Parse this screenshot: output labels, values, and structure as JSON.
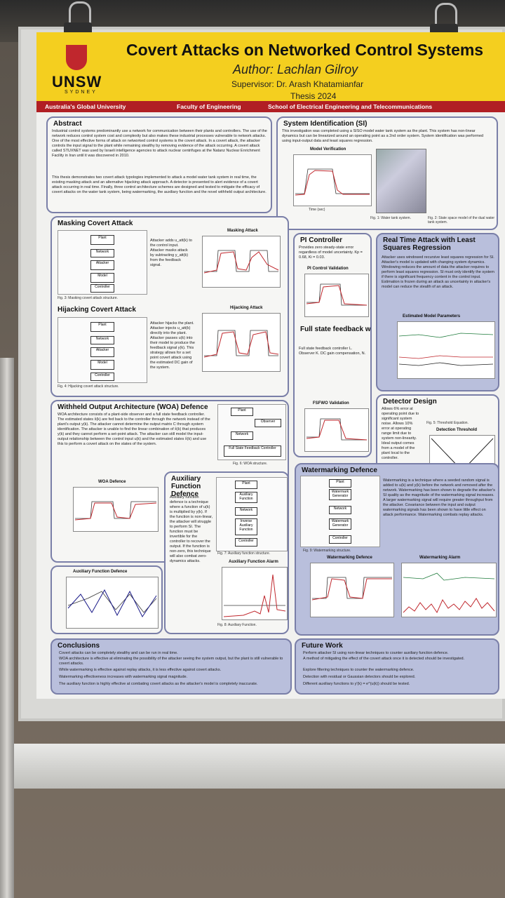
{
  "poster": {
    "title": "Covert Attacks on Networked Control Systems",
    "author": "Author: Lachlan Gilroy",
    "supervisor": "Supervisor: Dr. Arash Khatamianfar",
    "thesis": "Thesis 2024",
    "logo_text": "UNSW",
    "logo_sub": "SYDNEY",
    "band": [
      "Australia's Global University",
      "Faculty of Engineering",
      "School of Electrical Engineering and Telecommunications"
    ]
  },
  "sections": {
    "abstract": {
      "title": "Abstract",
      "text": "Industrial control systems predominantly use a network for communication between their plants and controllers. The use of the network reduces control system cost and complexity but also makes these industrial processes vulnerable to network attacks. One of the most effective forms of attack on networked control systems is the covert attack. In a covert attack, the attacker controls the input signal to the plant while remaining stealthy by removing evidence of the attack occurring. A covert attack called STUXNET was used by Israeli intelligence agencies to attack nuclear centrifuges at the Natanz Nuclear Enrichment Facility in Iran until it was discovered in 2010.",
      "text2": "This thesis demonstrates two covert attack typologies implemented to attack a model water tank system in real time, the existing masking attack and an alternative hijacking attack approach. A detector is presented to alert evidence of a covert attack occurring in real time. Finally, three control architecture schemes are designed and tested to mitigate the efficacy of covert attacks on the water tank system, being watermarking, the auxiliary function and the novel withheld output architecture."
    },
    "si": {
      "title": "System Identification (SI)",
      "text": "This investigation was completed using a SISO model water tank system as the plant. This system has non-linear dynamics but can be linearized around an operating point as a 2nd order system. System identification was performed using input-output data and least squares regression.",
      "plot_title": "Model Verification",
      "xlabel": "Time (sec)",
      "ylabel": "Water Level (V)",
      "fig1": "Fig. 1: Water tank system.",
      "fig2": "Fig. 2: State space model of the dual water tank system."
    },
    "masking": {
      "title": "Masking Covert Attack",
      "text": "Attacker adds u_att(k) to the control input. Attacker masks attack by subtracting y_att(k) from the feedback signal.",
      "plot_title": "Masking Attack",
      "fig": "Fig. 3: Masking covert attack structure."
    },
    "hijacking": {
      "title": "Hijacking Covert Attack",
      "text": "Attacker hijacks the plant. Attacker injects u_att(k) directly into the plant. Attacker passes u(k) into their model to produce the feedback signal y(k). This strategy allows for a set point covert attack using the estimated DC gain of the system.",
      "plot_title": "Hijacking Attack",
      "fig": "Fig. 4: Hijacking covert attack structure."
    },
    "pi": {
      "title": "PI Controller",
      "text": "Provides zero steady-state error regardless of model uncertainty. Kp = 0.68, Ki = 0.03.",
      "plot_title": "PI Control Validation"
    },
    "fsfo": {
      "title": "Full state feedback with observer",
      "text": "Full state feedback controller L. Observer K. DC gain compensation, N.",
      "plot_title": "FSFWO Validation"
    },
    "lsr": {
      "title": "Real Time Attack with Least Squares Regression",
      "text": "Attacker uses windowed recursive least squares regression for SI. Attacker's model is updated with changing system dynamics. Windowing reduces the amount of data the attacker requires to perform least squares regression. SI must only identify the system if there is significant frequency content in the control input. Estimation is frozen during an attack as uncertainty in attacker's model can reduce the stealth of an attack.",
      "plot_title": "Estimated Model Parameters"
    },
    "woa": {
      "title": "Withheld Output Architecture (WOA) Defence",
      "text": "WOA architecture consists of a plant-side observer and a full state feedback controller. The estimated states x̂(k) are fed back to the controller through the network instead of the plant's output y(k). The attacker cannot determine the output matrix C through system identification. The attacker is unable to find the linear combination of x̂(k) that produces y(k) and they cannot perform a set-point attack. The attacker can still model the input-output relationship between the control input u(k) and the estimated states x̂(k) and use this to perform a covert attack on the states of the system.",
      "plot_title": "WOA Defence",
      "fig": "Fig. 6: WOA structure."
    },
    "detector": {
      "title": "Detector Design",
      "text": "Allows 6% error at operating point due to significant system noise. Allows 10% error at operating range limit due to system non-linearity. Ideal output comes from a model of the plant local to the controller.",
      "plot_title": "Detection Threshold",
      "fig": "Fig. 5: Threshold Equation."
    },
    "aux": {
      "title": "Auxiliary Function Defence",
      "text": "Auxiliary function defence is a technique where a function of u(k) is multiplied by y(k). If the function is non-linear, the attacker will struggle to perform SI. The function must be invertible for the controller to recover the output. If the function is non-zero, this technique will also combat zero-dynamics attacks.",
      "plot_title": "Auxiliary Function Defence",
      "alarm_title": "Auxiliary Function Alarm",
      "fig7": "Fig. 7: Auxiliary function structure.",
      "fig8": "Fig. 8: Auxiliary Function."
    },
    "watermark": {
      "title": "Watermarking Defence",
      "text": "Watermarking is a technique where a seeded random signal is added to u(k) and y(k) before the network and removed after the network. Watermarking has been shown to degrade the attacker's SI quality as the magnitude of the watermarking signal increases. A larger watermarking signal will require greater throughput from the attacker. Covariance between the input and output watermarking signals has been shown to have little effect on attack performance. Watermarking combats replay attacks.",
      "plot_title": "Watermarking Defence",
      "alarm_title": "Watermarking Alarm",
      "fig": "Fig. 9: Watermarking structure."
    },
    "conclusions": {
      "title": "Conclusions",
      "items": [
        "Covert attacks can be completely stealthy and can be run in real time.",
        "WOA architecture is effective at eliminating the possibility of the attacker seeing the system output, but the plant is still vulnerable to covert attacks.",
        "While watermarking is effective against replay attacks, it is less effective against covert attacks.",
        "Watermarking effectiveness increases with watermarking signal magnitude.",
        "The auxiliary function is highly effective at combating covert attacks as the attacker's model is completely inaccurate."
      ]
    },
    "future": {
      "title": "Future Work",
      "items": [
        "Perform attacker SI using non-linear techniques to counter auxiliary function defence.",
        "A method of mitigating the effect of the covert attack once it is detected should be investigated.",
        "Explore filtering techniques to counter the watermarking defence.",
        "Detection with residual or Gaussian detectors should be explored.",
        "Different auxiliary functions to y'(k) = e^(u(k)) should be tested."
      ]
    }
  },
  "colors": {
    "header": "#f4cf1f",
    "band": "#b11f24",
    "panel_border": "#7a7fa8",
    "panel_blue": "#b9bfdc",
    "trace_ref": "#3a3a3a",
    "trace_actual": "#c0272d",
    "trace_obs": "#1d1d8a"
  }
}
